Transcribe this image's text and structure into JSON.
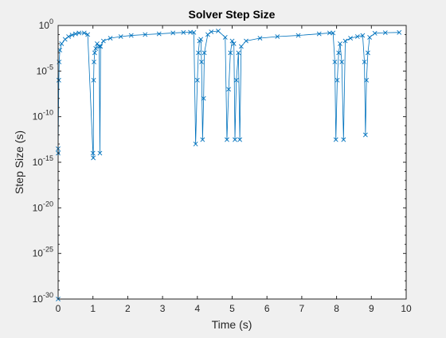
{
  "chart_data": {
    "type": "line",
    "title": "Solver Step Size",
    "xlabel": "Time (s)",
    "ylabel": "Step Size (s)",
    "xlim": [
      0,
      10
    ],
    "ylim": [
      1e-30,
      1
    ],
    "yscale": "log",
    "grid": false,
    "legend": "none",
    "marker": "x",
    "x_ticks": [
      0,
      1,
      2,
      3,
      4,
      5,
      6,
      7,
      8,
      9,
      10
    ],
    "x_tick_labels": [
      "0",
      "1",
      "2",
      "3",
      "4",
      "5",
      "6",
      "7",
      "8",
      "9",
      "10"
    ],
    "y_ticks": [
      {
        "value": 1e-30,
        "base": "10",
        "exp": "-30"
      },
      {
        "value": 1e-25,
        "base": "10",
        "exp": "-25"
      },
      {
        "value": 1e-20,
        "base": "10",
        "exp": "-20"
      },
      {
        "value": 1e-15,
        "base": "10",
        "exp": "-15"
      },
      {
        "value": 1e-10,
        "base": "10",
        "exp": "-10"
      },
      {
        "value": 1e-05,
        "base": "10",
        "exp": "-5"
      },
      {
        "value": 1,
        "base": "10",
        "exp": "0"
      }
    ],
    "series": [
      {
        "color": "#0072bd",
        "points": [
          [
            0.0,
            1e-30
          ],
          [
            0.0,
            3e-14
          ],
          [
            0.0,
            1e-14
          ],
          [
            0.02,
            1e-06
          ],
          [
            0.03,
            0.0001
          ],
          [
            0.05,
            0.002
          ],
          [
            0.1,
            0.01
          ],
          [
            0.2,
            0.03
          ],
          [
            0.3,
            0.06
          ],
          [
            0.4,
            0.09
          ],
          [
            0.5,
            0.12
          ],
          [
            0.6,
            0.15
          ],
          [
            0.75,
            0.15
          ],
          [
            0.85,
            0.1
          ],
          [
            1.0,
            1e-14
          ],
          [
            1.01,
            3e-15
          ],
          [
            1.02,
            1e-06
          ],
          [
            1.03,
            0.0001
          ],
          [
            1.05,
            0.001
          ],
          [
            1.08,
            0.003
          ],
          [
            1.12,
            0.01
          ],
          [
            1.18,
            0.005
          ],
          [
            1.2,
            1e-14
          ],
          [
            1.22,
            0.005
          ],
          [
            1.3,
            0.02
          ],
          [
            1.5,
            0.04
          ],
          [
            1.8,
            0.06
          ],
          [
            2.1,
            0.08
          ],
          [
            2.5,
            0.1
          ],
          [
            2.9,
            0.12
          ],
          [
            3.3,
            0.15
          ],
          [
            3.6,
            0.17
          ],
          [
            3.8,
            0.18
          ],
          [
            3.9,
            0.17
          ],
          [
            3.95,
            1e-13
          ],
          [
            4.0,
            1e-06
          ],
          [
            4.03,
            0.001
          ],
          [
            4.06,
            0.02
          ],
          [
            4.1,
            0.03
          ],
          [
            4.12,
            0.0001
          ],
          [
            4.15,
            3e-13
          ],
          [
            4.18,
            1e-08
          ],
          [
            4.2,
            0.001
          ],
          [
            4.3,
            0.1
          ],
          [
            4.4,
            0.2
          ],
          [
            4.6,
            0.25
          ],
          [
            4.8,
            0.05
          ],
          [
            4.85,
            3e-13
          ],
          [
            4.9,
            1e-07
          ],
          [
            4.95,
            0.001
          ],
          [
            5.0,
            0.02
          ],
          [
            5.05,
            0.01
          ],
          [
            5.08,
            3e-13
          ],
          [
            5.12,
            1e-06
          ],
          [
            5.18,
            0.001
          ],
          [
            5.22,
            3e-13
          ],
          [
            5.26,
            0.005
          ],
          [
            5.4,
            0.02
          ],
          [
            5.8,
            0.04
          ],
          [
            6.3,
            0.06
          ],
          [
            6.9,
            0.08
          ],
          [
            7.5,
            0.12
          ],
          [
            7.8,
            0.15
          ],
          [
            7.9,
            0.15
          ],
          [
            7.95,
            0.0001
          ],
          [
            7.98,
            3e-13
          ],
          [
            8.02,
            1e-06
          ],
          [
            8.06,
            0.001
          ],
          [
            8.1,
            0.01
          ],
          [
            8.15,
            0.0001
          ],
          [
            8.2,
            3e-13
          ],
          [
            8.25,
            0.02
          ],
          [
            8.4,
            0.04
          ],
          [
            8.6,
            0.06
          ],
          [
            8.75,
            0.08
          ],
          [
            8.8,
            0.0001
          ],
          [
            8.83,
            1e-12
          ],
          [
            8.86,
            1e-06
          ],
          [
            8.9,
            0.001
          ],
          [
            8.95,
            0.05
          ],
          [
            9.1,
            0.14
          ],
          [
            9.4,
            0.16
          ],
          [
            9.8,
            0.17
          ]
        ]
      }
    ]
  }
}
